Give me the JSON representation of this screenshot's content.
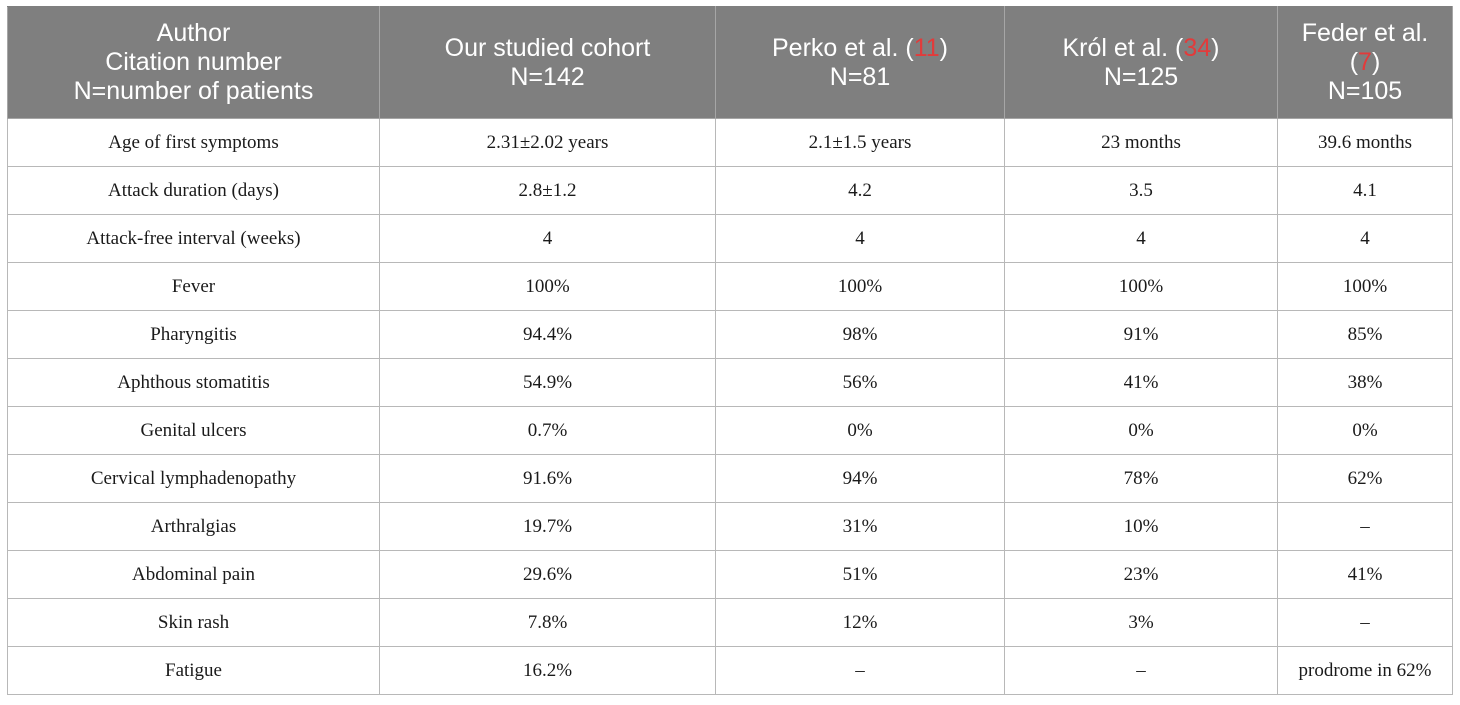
{
  "header": {
    "col0": [
      "Author",
      "Citation number",
      "N=number of patients"
    ],
    "col1": [
      "Our studied cohort",
      "N=142"
    ],
    "col2": {
      "before": "Perko et al. (",
      "cite": "11",
      "after": ")",
      "n": "N=81"
    },
    "col3": {
      "before": "Król et al. (",
      "cite": "34",
      "after": ")",
      "n": "N=125"
    },
    "col4": {
      "line1": "Feder et al.",
      "open": "(",
      "cite": "7",
      "after": ")",
      "n": "N=105"
    }
  },
  "rows": [
    [
      "Age of first symptoms",
      "2.31±2.02 years",
      "2.1±1.5 years",
      "23 months",
      "39.6 months"
    ],
    [
      "Attack duration (days)",
      "2.8±1.2",
      "4.2",
      "3.5",
      "4.1"
    ],
    [
      "Attack-free interval (weeks)",
      "4",
      "4",
      "4",
      "4"
    ],
    [
      "Fever",
      "100%",
      "100%",
      "100%",
      "100%"
    ],
    [
      "Pharyngitis",
      "94.4%",
      "98%",
      "91%",
      "85%"
    ],
    [
      "Aphthous stomatitis",
      "54.9%",
      "56%",
      "41%",
      "38%"
    ],
    [
      "Genital ulcers",
      "0.7%",
      "0%",
      "0%",
      "0%"
    ],
    [
      "Cervical lymphadenopathy",
      "91.6%",
      "94%",
      "78%",
      "62%"
    ],
    [
      "Arthralgias",
      "19.7%",
      "31%",
      "10%",
      "–"
    ],
    [
      "Abdominal pain",
      "29.6%",
      "51%",
      "23%",
      "41%"
    ],
    [
      "Skin rash",
      "7.8%",
      "12%",
      "3%",
      "–"
    ],
    [
      "Fatigue",
      "16.2%",
      "–",
      "–",
      "prodrome in 62%"
    ]
  ]
}
